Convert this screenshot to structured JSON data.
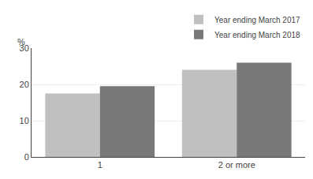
{
  "chart_data": {
    "type": "bar",
    "categories": [
      "1",
      "2 or more"
    ],
    "series": [
      {
        "name": "Year ending March 2017",
        "color": "#c0c0c0",
        "values": [
          17.5,
          24.0
        ]
      },
      {
        "name": "Year ending March 2018",
        "color": "#787878",
        "values": [
          19.5,
          26.0
        ]
      }
    ],
    "ylabel": "%",
    "ylim": [
      0,
      30
    ],
    "yticks": [
      0,
      10,
      20,
      30
    ],
    "grid": true,
    "legend": "upper right"
  }
}
